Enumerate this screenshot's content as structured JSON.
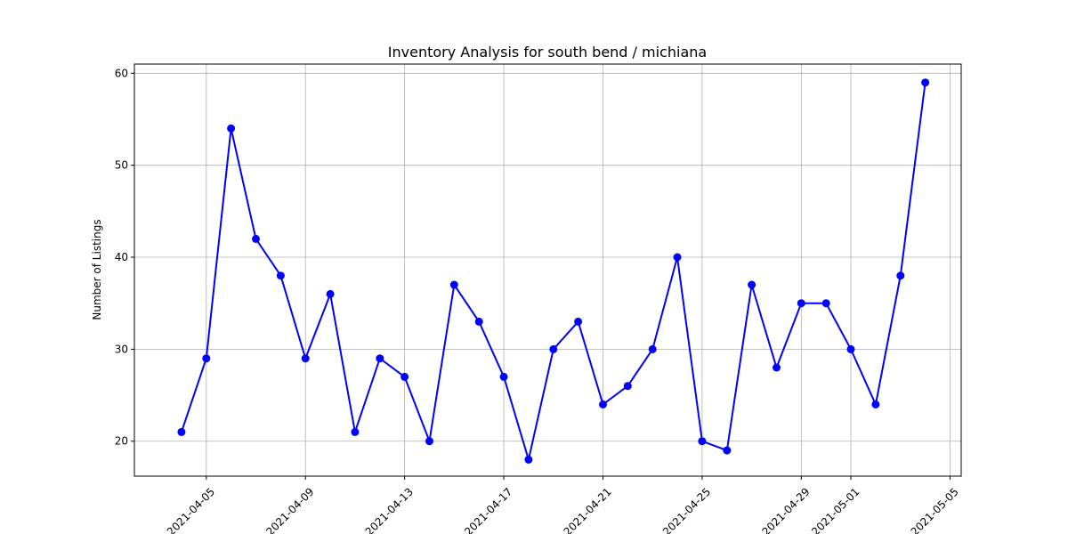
{
  "chart_data": {
    "type": "line",
    "title": "Inventory Analysis for south bend / michiana",
    "xlabel": "",
    "ylabel": "Number of Listings",
    "grid": true,
    "line_color": "#0000ff",
    "marker": "circle",
    "ylim": [
      16,
      61
    ],
    "xlim": [
      "2021-04-02",
      "2021-05-05"
    ],
    "x_ticks": [
      "2021-04-05",
      "2021-04-09",
      "2021-04-13",
      "2021-04-17",
      "2021-04-21",
      "2021-04-25",
      "2021-04-29",
      "2021-05-01",
      "2021-05-05"
    ],
    "y_ticks": [
      20,
      30,
      40,
      50,
      60
    ],
    "x": [
      "2021-04-04",
      "2021-04-05",
      "2021-04-06",
      "2021-04-07",
      "2021-04-08",
      "2021-04-09",
      "2021-04-10",
      "2021-04-11",
      "2021-04-12",
      "2021-04-13",
      "2021-04-14",
      "2021-04-15",
      "2021-04-16",
      "2021-04-17",
      "2021-04-18",
      "2021-04-19",
      "2021-04-20",
      "2021-04-21",
      "2021-04-22",
      "2021-04-23",
      "2021-04-24",
      "2021-04-25",
      "2021-04-26",
      "2021-04-27",
      "2021-04-28",
      "2021-04-29",
      "2021-04-30",
      "2021-05-01",
      "2021-05-02",
      "2021-05-03",
      "2021-05-04"
    ],
    "series": [
      {
        "values": [
          21,
          29,
          54,
          42,
          38,
          29,
          36,
          21,
          29,
          27,
          20,
          37,
          33,
          27,
          18,
          30,
          33,
          24,
          26,
          30,
          40,
          20,
          19,
          37,
          28,
          35,
          35,
          30,
          24,
          38,
          59
        ]
      }
    ]
  }
}
